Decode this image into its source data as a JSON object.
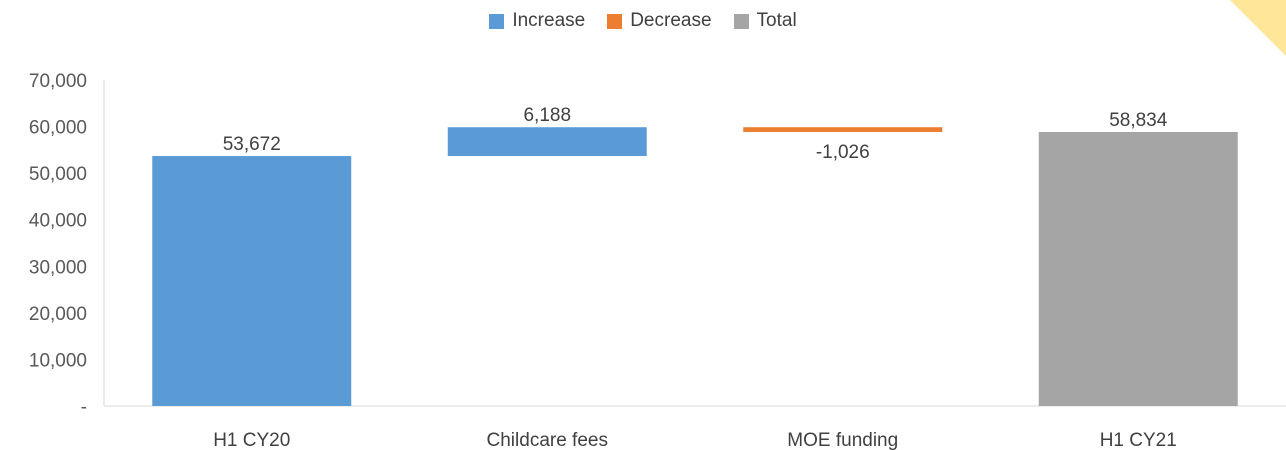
{
  "chart_data": {
    "type": "bar",
    "subtype": "waterfall",
    "legend": [
      {
        "name": "Increase",
        "color": "#5b9bd5"
      },
      {
        "name": "Decrease",
        "color": "#ed7d31"
      },
      {
        "name": "Total",
        "color": "#a5a5a5"
      }
    ],
    "legend_position": "top",
    "categories": [
      "H1 CY20",
      "Childcare fees",
      "MOE funding",
      "H1 CY21"
    ],
    "values": [
      53672,
      6188,
      -1026,
      58834
    ],
    "value_labels": [
      "53,672",
      "6,188",
      "-1,026",
      "58,834"
    ],
    "bar_kinds": [
      "Increase",
      "Increase",
      "Decrease",
      "Total"
    ],
    "ylim": [
      0,
      70000
    ],
    "yticks": [
      0,
      10000,
      20000,
      30000,
      40000,
      50000,
      60000,
      70000
    ],
    "ytick_labels": [
      "-",
      "10,000",
      "20,000",
      "30,000",
      "40,000",
      "50,000",
      "60,000",
      "70,000"
    ],
    "grid": false
  }
}
